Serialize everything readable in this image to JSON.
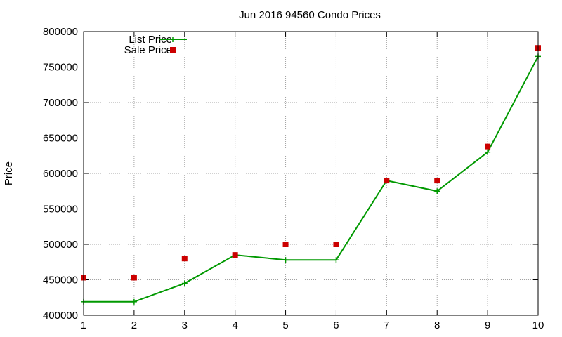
{
  "chart_data": {
    "type": "line",
    "title": "Jun 2016 94560 Condo Prices",
    "xlabel": "",
    "ylabel": "Price",
    "xlim": [
      1,
      10
    ],
    "ylim": [
      400000,
      800000
    ],
    "grid": true,
    "legend_position": "top-left",
    "x_ticks": [
      "1",
      "2",
      "3",
      "4",
      "5",
      "6",
      "7",
      "8",
      "9",
      "10"
    ],
    "y_ticks": [
      "400000",
      "450000",
      "500000",
      "550000",
      "600000",
      "650000",
      "700000",
      "750000",
      "800000"
    ],
    "x": [
      1,
      2,
      3,
      4,
      5,
      6,
      7,
      8,
      9,
      10
    ],
    "series": [
      {
        "name": "List Price",
        "style": "line-with-plus-markers",
        "color": "#009900",
        "values": [
          419000,
          419000,
          445000,
          485000,
          478000,
          478000,
          590000,
          575000,
          630000,
          765000
        ]
      },
      {
        "name": "Sale Price",
        "style": "square-markers",
        "color": "#cc0000",
        "values": [
          453000,
          453000,
          480000,
          485000,
          500000,
          500000,
          590000,
          590000,
          638000,
          777000
        ]
      }
    ]
  }
}
